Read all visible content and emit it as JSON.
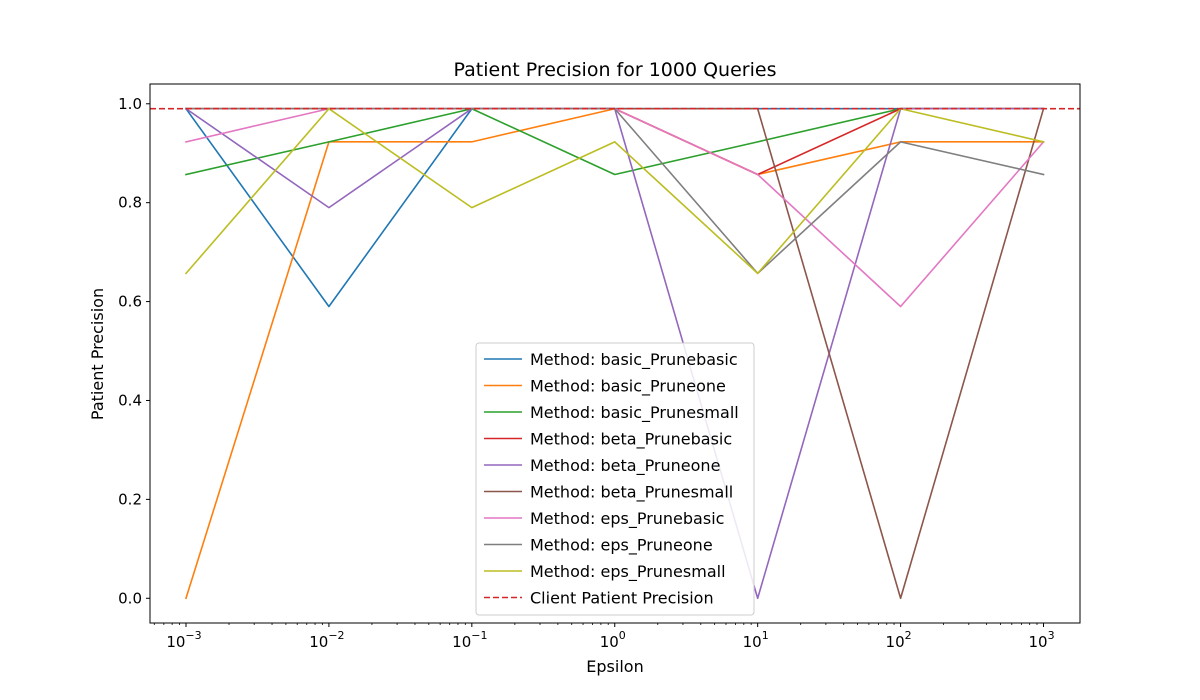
{
  "chart_data": {
    "type": "line",
    "title": "Patient Precision for 1000 Queries",
    "xlabel": "Epsilon",
    "ylabel": "Patient Precision",
    "xscale": "log",
    "x": [
      0.001,
      0.01,
      0.1,
      1,
      10,
      100,
      1000
    ],
    "x_tick_labels": [
      {
        "base": "10",
        "exp": "−3"
      },
      {
        "base": "10",
        "exp": "−2"
      },
      {
        "base": "10",
        "exp": "−1"
      },
      {
        "base": "10",
        "exp": "0"
      },
      {
        "base": "10",
        "exp": "1"
      },
      {
        "base": "10",
        "exp": "2"
      },
      {
        "base": "10",
        "exp": "3"
      }
    ],
    "y_ticks": [
      0.0,
      0.2,
      0.4,
      0.6,
      0.8,
      1.0
    ],
    "y_tick_labels": [
      "0.0",
      "0.2",
      "0.4",
      "0.6",
      "0.8",
      "1.0"
    ],
    "xlim": [
      0.00056,
      1800
    ],
    "ylim": [
      -0.05,
      1.04
    ],
    "grid": false,
    "legend_position": "lower-center",
    "series": [
      {
        "name": "Method: basic_Prunebasic",
        "color": "#1f77b4",
        "values": [
          0.99,
          0.59,
          0.99,
          0.99,
          0.99,
          0.99,
          0.99
        ]
      },
      {
        "name": "Method: basic_Pruneone",
        "color": "#ff7f0e",
        "values": [
          0.0,
          0.923,
          0.923,
          0.99,
          0.857,
          0.923,
          0.923
        ]
      },
      {
        "name": "Method: basic_Prunesmall",
        "color": "#2ca02c",
        "values": [
          0.857,
          0.923,
          0.99,
          0.857,
          0.923,
          0.99,
          0.99
        ]
      },
      {
        "name": "Method: beta_Prunebasic",
        "color": "#d62728",
        "values": [
          0.99,
          0.99,
          0.99,
          0.99,
          0.857,
          0.99,
          0.99
        ]
      },
      {
        "name": "Method: beta_Pruneone",
        "color": "#9467bd",
        "values": [
          0.99,
          0.79,
          0.99,
          0.99,
          0.0,
          0.99,
          0.99
        ]
      },
      {
        "name": "Method: beta_Prunesmall",
        "color": "#8c564b",
        "values": [
          0.99,
          0.99,
          0.99,
          0.99,
          0.99,
          0.0,
          0.99
        ]
      },
      {
        "name": "Method: eps_Prunebasic",
        "color": "#e377c2",
        "values": [
          0.923,
          0.99,
          0.99,
          0.99,
          0.857,
          0.59,
          0.923
        ]
      },
      {
        "name": "Method: eps_Pruneone",
        "color": "#7f7f7f",
        "values": [
          0.99,
          0.99,
          0.99,
          0.99,
          0.657,
          0.923,
          0.857
        ]
      },
      {
        "name": "Method: eps_Prunesmall",
        "color": "#bcbd22",
        "values": [
          0.657,
          0.99,
          0.79,
          0.923,
          0.657,
          0.99,
          0.923
        ]
      }
    ],
    "reference_line": {
      "name": "Client Patient Precision",
      "color": "#d62728",
      "value": 0.99,
      "style": "dashed"
    }
  }
}
